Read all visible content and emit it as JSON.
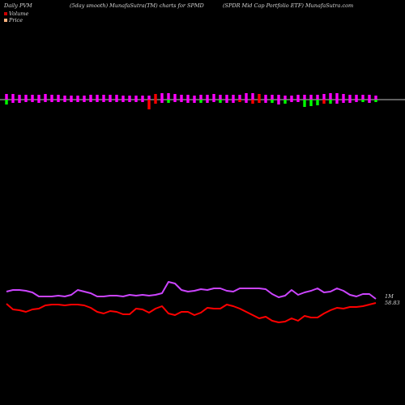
{
  "header": {
    "left": "Daily PVM",
    "middle": "(5day smooth) MunafaSutra(TM) charts for SPMD",
    "right": "(SPDR Mid Cap Portfolio  ETF) MunafaSutra.com"
  },
  "legend": [
    {
      "label": "Volume",
      "color": "#cc0000"
    },
    {
      "label": "Price",
      "color": "#ffb380"
    }
  ],
  "end_label": {
    "line1": "1M",
    "line2": "58.83"
  },
  "colors": {
    "background": "#000000",
    "up_bar": "#ff00ff",
    "down_bar_strong": "#ff0000",
    "up_volume": "#00ff00",
    "down_volume": "#00cc44",
    "price_line": "#ff0000",
    "pvm_line": "#cc44ff",
    "baseline": "#ffffff"
  },
  "chart_data": {
    "type": "line",
    "title": "",
    "xlabel": "",
    "ylabel": "",
    "x_count": 58,
    "bars_top": [
      7,
      7,
      6,
      6,
      6,
      6,
      7,
      6,
      6,
      5,
      5,
      5,
      5,
      6,
      6,
      6,
      6,
      6,
      5,
      5,
      5,
      5,
      5,
      7,
      8,
      8,
      7,
      6,
      6,
      5,
      6,
      6,
      7,
      6,
      6,
      6,
      6,
      8,
      8,
      7,
      6,
      6,
      6,
      5,
      5,
      6,
      6,
      6,
      6,
      7,
      8,
      8,
      7,
      6,
      6,
      6,
      6,
      5
    ],
    "bars_top_color": [
      "m",
      "m",
      "m",
      "m",
      "m",
      "m",
      "m",
      "m",
      "m",
      "m",
      "m",
      "m",
      "m",
      "m",
      "m",
      "m",
      "m",
      "m",
      "m",
      "m",
      "m",
      "m",
      "m",
      "r",
      "m",
      "m",
      "m",
      "m",
      "m",
      "m",
      "m",
      "m",
      "m",
      "m",
      "m",
      "m",
      "m",
      "m",
      "m",
      "r",
      "m",
      "m",
      "m",
      "m",
      "m",
      "m",
      "m",
      "m",
      "m",
      "m",
      "m",
      "m",
      "m",
      "m",
      "m",
      "m",
      "m",
      "m"
    ],
    "bars_bottom": [
      6,
      4,
      4,
      3,
      3,
      4,
      3,
      3,
      3,
      3,
      3,
      3,
      3,
      3,
      3,
      3,
      3,
      3,
      3,
      3,
      3,
      3,
      12,
      5,
      4,
      4,
      3,
      3,
      4,
      4,
      4,
      4,
      3,
      4,
      4,
      4,
      3,
      4,
      5,
      4,
      4,
      4,
      6,
      5,
      3,
      3,
      9,
      8,
      7,
      5,
      5,
      5,
      4,
      4,
      3,
      3,
      4,
      3
    ],
    "bars_bottom_color": [
      "g",
      "m",
      "m",
      "m",
      "m",
      "m",
      "m",
      "m",
      "m",
      "m",
      "m",
      "m",
      "m",
      "m",
      "m",
      "m",
      "m",
      "m",
      "m",
      "m",
      "m",
      "m",
      "r",
      "r",
      "m",
      "g",
      "m",
      "m",
      "m",
      "m",
      "g",
      "m",
      "m",
      "g",
      "m",
      "m",
      "r",
      "m",
      "r",
      "r",
      "m",
      "g",
      "m",
      "g",
      "m",
      "m",
      "g",
      "g",
      "g",
      "r",
      "g",
      "m",
      "m",
      "m",
      "m",
      "g",
      "m",
      "g"
    ],
    "series": [
      {
        "values": [
          360,
          358,
          358,
          359,
          361,
          366,
          366,
          366,
          365,
          366,
          364,
          358,
          360,
          362,
          366,
          366,
          365,
          365,
          366,
          364,
          365,
          364,
          365,
          364,
          362,
          348,
          350,
          358,
          360,
          359,
          357,
          358,
          356,
          356,
          359,
          360,
          356,
          356,
          356,
          356,
          357,
          363,
          367,
          365,
          358,
          364,
          361,
          359,
          356,
          361,
          360,
          356,
          359,
          364,
          366,
          363,
          363,
          369
        ]
      },
      {
        "values": [
          375,
          382,
          383,
          385,
          382,
          381,
          377,
          376,
          376,
          377,
          376,
          376,
          377,
          380,
          385,
          387,
          384,
          385,
          388,
          388,
          381,
          382,
          386,
          381,
          378,
          387,
          389,
          385,
          385,
          389,
          386,
          380,
          381,
          381,
          376,
          378,
          381,
          385,
          389,
          393,
          391,
          396,
          398,
          397,
          393,
          396,
          390,
          392,
          392,
          387,
          383,
          380,
          381,
          379,
          379,
          378,
          376,
          374
        ]
      }
    ]
  }
}
